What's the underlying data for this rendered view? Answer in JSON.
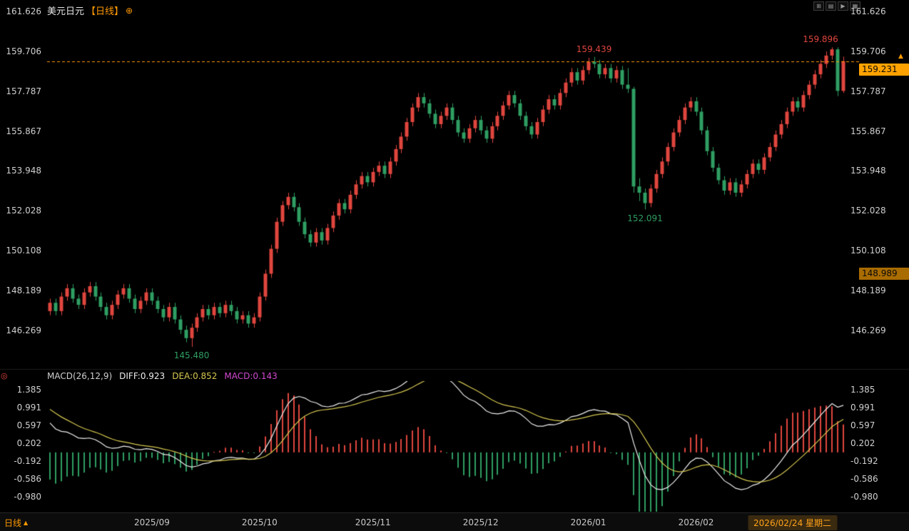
{
  "header": {
    "symbol": "美元日元",
    "period_tag": "【日线】",
    "add_icon": "⊕"
  },
  "toolbar": {
    "buttons": [
      {
        "name": "grid-layout",
        "glyph": "⊞"
      },
      {
        "name": "chart-style",
        "glyph": "▤"
      },
      {
        "name": "scale-mode",
        "glyph": "▶"
      },
      {
        "name": "panel-layout",
        "glyph": "▦"
      }
    ]
  },
  "badges": {
    "last_price": "159.231",
    "alert_price": "148.989"
  },
  "icons": {
    "latest_arrow": "▲",
    "target": "◎"
  },
  "macd_pane": {
    "label": "MACD(26,12,9)",
    "diff_label": "DIFF:0.923",
    "dea_label": "DEA:0.852",
    "macd_label": "MACD:0.143"
  },
  "bottom_bar": {
    "pane_label": "日线",
    "pane_arrow": "▲"
  },
  "colors": {
    "background": "#000000",
    "up": "#e0463e",
    "down": "#2f9e62",
    "accent_orange": "#ff9a00",
    "badge_bg": "#ffa200",
    "badge_text": "#0a0a0a",
    "alert_badge_bg": "#a96c00",
    "axis_text": "#cfcfcf",
    "diff_line": "#ededed",
    "dea_line": "#d5c750",
    "macd_label": "#cf49cf",
    "cur_date_bg": "#3a2a10",
    "cur_date_text": "#ffa21a"
  },
  "chart_data": {
    "type": "candlestick",
    "title": "美元日元 日线 (USD/JPY Daily) with MACD(26,12,9)",
    "columns": [
      "open",
      "high",
      "low",
      "close"
    ],
    "main": {
      "yticks": [
        161.626,
        159.706,
        157.787,
        155.867,
        153.948,
        152.028,
        150.108,
        148.189,
        146.269
      ],
      "ylim": [
        145.0,
        161.9
      ],
      "last_price": 159.231,
      "alert_price": 148.989,
      "annotations": [
        {
          "index": 25,
          "price": 145.48,
          "text": "145.480",
          "side": "below",
          "color": "down"
        },
        {
          "index": 96,
          "price": 159.439,
          "text": "159.439",
          "side": "above",
          "color": "up"
        },
        {
          "index": 105,
          "price": 152.091,
          "text": "152.091",
          "side": "below",
          "color": "down"
        },
        {
          "index": 138,
          "price": 159.896,
          "text": "159.896",
          "side": "above",
          "color": "up"
        }
      ],
      "candles": [
        [
          147.2,
          147.8,
          147.0,
          147.6
        ],
        [
          147.6,
          147.8,
          147.0,
          147.2
        ],
        [
          147.2,
          148.1,
          147.0,
          147.9
        ],
        [
          147.9,
          148.5,
          147.7,
          148.3
        ],
        [
          148.3,
          148.5,
          147.6,
          147.8
        ],
        [
          147.8,
          148.0,
          147.3,
          147.5
        ],
        [
          147.5,
          148.3,
          147.3,
          148.1
        ],
        [
          148.1,
          148.6,
          147.9,
          148.4
        ],
        [
          148.4,
          148.6,
          147.7,
          147.9
        ],
        [
          147.9,
          148.1,
          147.2,
          147.4
        ],
        [
          147.4,
          147.6,
          146.8,
          147.0
        ],
        [
          147.0,
          147.7,
          146.8,
          147.5
        ],
        [
          147.5,
          148.2,
          147.3,
          148.0
        ],
        [
          148.0,
          148.5,
          147.8,
          148.3
        ],
        [
          148.3,
          148.5,
          147.6,
          147.8
        ],
        [
          147.8,
          148.0,
          147.1,
          147.3
        ],
        [
          147.3,
          147.9,
          147.1,
          147.7
        ],
        [
          147.7,
          148.3,
          147.5,
          148.1
        ],
        [
          148.1,
          148.3,
          147.5,
          147.7
        ],
        [
          147.7,
          147.9,
          147.1,
          147.3
        ],
        [
          147.3,
          147.5,
          146.7,
          146.9
        ],
        [
          146.9,
          147.6,
          146.7,
          147.4
        ],
        [
          147.4,
          147.6,
          146.6,
          146.8
        ],
        [
          146.8,
          147.0,
          146.1,
          146.3
        ],
        [
          146.3,
          146.5,
          145.7,
          145.9
        ],
        [
          145.9,
          146.6,
          145.48,
          146.4
        ],
        [
          146.4,
          147.1,
          146.2,
          146.9
        ],
        [
          146.9,
          147.5,
          146.7,
          147.3
        ],
        [
          147.3,
          147.5,
          146.8,
          147.0
        ],
        [
          147.0,
          147.6,
          146.8,
          147.4
        ],
        [
          147.4,
          147.6,
          146.9,
          147.1
        ],
        [
          147.1,
          147.7,
          146.9,
          147.5
        ],
        [
          147.5,
          147.7,
          147.0,
          147.2
        ],
        [
          147.2,
          147.4,
          146.6,
          146.8
        ],
        [
          146.8,
          147.2,
          146.6,
          147.0
        ],
        [
          147.0,
          147.2,
          146.4,
          146.6
        ],
        [
          146.6,
          147.1,
          146.4,
          146.9
        ],
        [
          146.9,
          148.1,
          146.7,
          147.9
        ],
        [
          147.9,
          149.2,
          147.7,
          149.0
        ],
        [
          149.0,
          150.4,
          148.8,
          150.2
        ],
        [
          150.2,
          151.7,
          150.0,
          151.5
        ],
        [
          151.5,
          152.5,
          151.3,
          152.3
        ],
        [
          152.3,
          152.9,
          152.1,
          152.7
        ],
        [
          152.7,
          152.9,
          152.0,
          152.2
        ],
        [
          152.2,
          152.4,
          151.3,
          151.5
        ],
        [
          151.5,
          151.7,
          150.7,
          150.9
        ],
        [
          150.9,
          151.1,
          150.3,
          150.5
        ],
        [
          150.5,
          151.2,
          150.3,
          151.0
        ],
        [
          151.0,
          151.2,
          150.4,
          150.6
        ],
        [
          150.6,
          151.4,
          150.4,
          151.2
        ],
        [
          151.2,
          152.0,
          151.0,
          151.8
        ],
        [
          151.8,
          152.6,
          151.6,
          152.4
        ],
        [
          152.4,
          152.6,
          151.9,
          152.1
        ],
        [
          152.1,
          153.0,
          151.9,
          152.8
        ],
        [
          152.8,
          153.5,
          152.6,
          153.3
        ],
        [
          153.3,
          153.9,
          153.1,
          153.7
        ],
        [
          153.7,
          153.9,
          153.2,
          153.4
        ],
        [
          153.4,
          154.1,
          153.2,
          153.9
        ],
        [
          153.9,
          154.4,
          153.7,
          154.2
        ],
        [
          154.2,
          154.4,
          153.6,
          153.8
        ],
        [
          153.8,
          154.6,
          153.6,
          154.4
        ],
        [
          154.4,
          155.2,
          154.2,
          155.0
        ],
        [
          155.0,
          155.8,
          154.8,
          155.6
        ],
        [
          155.6,
          156.5,
          155.4,
          156.3
        ],
        [
          156.3,
          157.2,
          156.1,
          157.0
        ],
        [
          157.0,
          157.7,
          156.8,
          157.5
        ],
        [
          157.5,
          157.7,
          157.0,
          157.2
        ],
        [
          157.2,
          157.4,
          156.5,
          156.7
        ],
        [
          156.7,
          156.9,
          156.0,
          156.2
        ],
        [
          156.2,
          156.8,
          156.0,
          156.6
        ],
        [
          156.6,
          157.2,
          156.4,
          157.0
        ],
        [
          157.0,
          157.2,
          156.2,
          156.4
        ],
        [
          156.4,
          156.6,
          155.6,
          155.8
        ],
        [
          155.8,
          156.0,
          155.3,
          155.5
        ],
        [
          155.5,
          156.2,
          155.3,
          156.0
        ],
        [
          156.0,
          156.6,
          155.8,
          156.4
        ],
        [
          156.4,
          156.6,
          155.7,
          155.9
        ],
        [
          155.9,
          156.1,
          155.3,
          155.5
        ],
        [
          155.5,
          156.3,
          155.3,
          156.1
        ],
        [
          156.1,
          156.8,
          155.9,
          156.6
        ],
        [
          156.6,
          157.3,
          156.4,
          157.1
        ],
        [
          157.1,
          157.8,
          156.9,
          157.6
        ],
        [
          157.6,
          157.8,
          157.0,
          157.2
        ],
        [
          157.2,
          157.4,
          156.4,
          156.6
        ],
        [
          156.6,
          156.8,
          155.9,
          156.1
        ],
        [
          156.1,
          156.3,
          155.5,
          155.7
        ],
        [
          155.7,
          156.5,
          155.5,
          156.3
        ],
        [
          156.3,
          157.1,
          156.1,
          156.9
        ],
        [
          156.9,
          157.6,
          156.7,
          157.4
        ],
        [
          157.4,
          157.6,
          156.9,
          157.1
        ],
        [
          157.1,
          157.9,
          156.9,
          157.7
        ],
        [
          157.7,
          158.4,
          157.5,
          158.2
        ],
        [
          158.2,
          158.9,
          158.0,
          158.7
        ],
        [
          158.7,
          158.9,
          158.1,
          158.3
        ],
        [
          158.3,
          159.0,
          158.1,
          158.8
        ],
        [
          158.8,
          159.4,
          158.6,
          159.2
        ],
        [
          159.2,
          159.439,
          158.9,
          159.1
        ],
        [
          159.1,
          159.3,
          158.4,
          158.6
        ],
        [
          158.6,
          159.1,
          158.4,
          158.9
        ],
        [
          158.9,
          159.1,
          158.2,
          158.4
        ],
        [
          158.4,
          159.0,
          158.2,
          158.8
        ],
        [
          158.8,
          159.0,
          157.9,
          158.1
        ],
        [
          158.1,
          158.9,
          157.7,
          157.9
        ],
        [
          157.9,
          158.0,
          152.9,
          153.2
        ],
        [
          153.2,
          153.6,
          152.5,
          152.9
        ],
        [
          152.9,
          153.1,
          152.091,
          152.4
        ],
        [
          152.4,
          153.3,
          152.2,
          153.1
        ],
        [
          153.1,
          154.0,
          152.9,
          153.8
        ],
        [
          153.8,
          154.6,
          153.6,
          154.4
        ],
        [
          154.4,
          155.3,
          154.2,
          155.1
        ],
        [
          155.1,
          156.0,
          154.9,
          155.8
        ],
        [
          155.8,
          156.6,
          155.6,
          156.4
        ],
        [
          156.4,
          157.2,
          156.2,
          157.0
        ],
        [
          157.0,
          157.5,
          156.8,
          157.3
        ],
        [
          157.3,
          157.5,
          156.6,
          156.8
        ],
        [
          156.8,
          157.0,
          155.7,
          155.9
        ],
        [
          155.9,
          156.1,
          154.7,
          154.9
        ],
        [
          154.9,
          155.1,
          153.9,
          154.1
        ],
        [
          154.1,
          154.3,
          153.3,
          153.5
        ],
        [
          153.5,
          153.7,
          152.8,
          153.0
        ],
        [
          153.0,
          153.6,
          152.8,
          153.4
        ],
        [
          153.4,
          153.6,
          152.7,
          152.9
        ],
        [
          152.9,
          153.5,
          152.7,
          153.3
        ],
        [
          153.3,
          154.0,
          153.1,
          153.8
        ],
        [
          153.8,
          154.5,
          153.6,
          154.3
        ],
        [
          154.3,
          154.5,
          153.8,
          154.0
        ],
        [
          154.0,
          154.8,
          153.8,
          154.6
        ],
        [
          154.6,
          155.3,
          154.4,
          155.1
        ],
        [
          155.1,
          155.9,
          154.9,
          155.7
        ],
        [
          155.7,
          156.4,
          155.5,
          156.2
        ],
        [
          156.2,
          157.0,
          156.0,
          156.8
        ],
        [
          156.8,
          157.5,
          156.6,
          157.3
        ],
        [
          157.3,
          157.5,
          156.8,
          157.0
        ],
        [
          157.0,
          157.8,
          156.8,
          157.6
        ],
        [
          157.6,
          158.3,
          157.4,
          158.1
        ],
        [
          158.1,
          158.8,
          157.9,
          158.6
        ],
        [
          158.6,
          159.3,
          158.4,
          159.1
        ],
        [
          159.1,
          159.7,
          158.9,
          159.5
        ],
        [
          159.5,
          159.896,
          159.3,
          159.8
        ],
        [
          159.8,
          159.9,
          157.55,
          157.8
        ],
        [
          157.8,
          159.45,
          157.7,
          159.231
        ]
      ]
    },
    "macd": {
      "params": [
        26,
        12,
        9
      ],
      "diff": 0.923,
      "dea": 0.852,
      "macd": 0.143,
      "yticks": [
        1.385,
        0.991,
        0.597,
        0.202,
        -0.192,
        -0.586,
        -0.98
      ]
    },
    "x_axis": {
      "labels": [
        {
          "text": "2025/09",
          "index": 18
        },
        {
          "text": "2025/10",
          "index": 37
        },
        {
          "text": "2025/11",
          "index": 57
        },
        {
          "text": "2025/12",
          "index": 76
        },
        {
          "text": "2026/01",
          "index": 95
        },
        {
          "text": "2026/02",
          "index": 114
        }
      ],
      "current": {
        "text": "2026/02/24 星期二",
        "index": 131
      }
    }
  }
}
